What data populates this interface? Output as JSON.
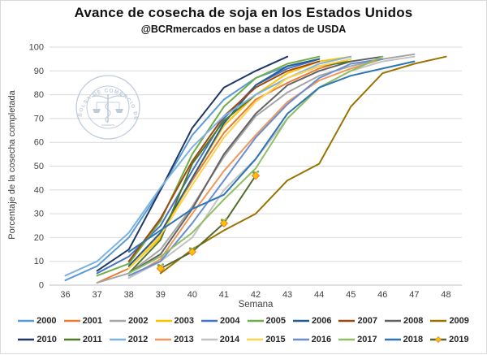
{
  "chart_data": {
    "type": "line",
    "title": "Avance de cosecha de soja en los Estados Unidos",
    "subtitle": "@BCRmercados en base a datos de USDA",
    "xlabel": "Semana",
    "ylabel": "Porcentaje de la cosecha completada",
    "x": [
      36,
      37,
      38,
      39,
      40,
      41,
      42,
      43,
      44,
      45,
      46,
      47,
      48
    ],
    "ylim": [
      0,
      100
    ],
    "ytick_step": 10,
    "grid": true,
    "legend_position": "bottom",
    "legend_rows": 2,
    "marker_style": {
      "fill": "#FFC000",
      "stroke": "#ED7D31",
      "leaf": "#70AD47"
    },
    "series": [
      {
        "name": "2000",
        "color": "#5B9BD5",
        "marker": false,
        "points": [
          [
            36,
            2
          ],
          [
            37,
            8
          ],
          [
            38,
            20
          ],
          [
            39,
            40
          ],
          [
            40,
            63
          ],
          [
            41,
            78
          ],
          [
            42,
            87
          ],
          [
            43,
            92
          ],
          [
            44,
            95
          ]
        ]
      },
      {
        "name": "2001",
        "color": "#ED7D31",
        "marker": false,
        "points": [
          [
            37,
            1
          ],
          [
            38,
            7
          ],
          [
            39,
            22
          ],
          [
            40,
            44
          ],
          [
            41,
            64
          ],
          [
            42,
            78
          ],
          [
            43,
            85
          ],
          [
            44,
            91
          ],
          [
            45,
            95
          ]
        ]
      },
      {
        "name": "2002",
        "color": "#A5A5A5",
        "marker": false,
        "points": [
          [
            37,
            1
          ],
          [
            38,
            5
          ],
          [
            39,
            15
          ],
          [
            40,
            33
          ],
          [
            41,
            54
          ],
          [
            42,
            71
          ],
          [
            43,
            81
          ],
          [
            44,
            88
          ],
          [
            45,
            92
          ],
          [
            46,
            95
          ],
          [
            47,
            97
          ]
        ]
      },
      {
        "name": "2003",
        "color": "#FFC000",
        "marker": false,
        "points": [
          [
            38,
            7
          ],
          [
            39,
            20
          ],
          [
            40,
            45
          ],
          [
            41,
            67
          ],
          [
            42,
            80
          ],
          [
            43,
            89
          ],
          [
            44,
            94
          ],
          [
            45,
            96
          ]
        ]
      },
      {
        "name": "2004",
        "color": "#4472C4",
        "marker": false,
        "points": [
          [
            37,
            5
          ],
          [
            38,
            12
          ],
          [
            39,
            25
          ],
          [
            40,
            48
          ],
          [
            41,
            70
          ],
          [
            42,
            84
          ],
          [
            43,
            91
          ],
          [
            44,
            95
          ]
        ]
      },
      {
        "name": "2005",
        "color": "#70AD47",
        "marker": false,
        "points": [
          [
            37,
            4
          ],
          [
            38,
            9
          ],
          [
            39,
            27
          ],
          [
            40,
            55
          ],
          [
            41,
            75
          ],
          [
            42,
            87
          ],
          [
            43,
            93
          ],
          [
            44,
            96
          ]
        ]
      },
      {
        "name": "2006",
        "color": "#255E91",
        "marker": false,
        "points": [
          [
            38,
            8
          ],
          [
            39,
            22
          ],
          [
            40,
            45
          ],
          [
            41,
            68
          ],
          [
            42,
            84
          ],
          [
            43,
            92
          ],
          [
            44,
            95
          ]
        ]
      },
      {
        "name": "2007",
        "color": "#9E480E",
        "marker": false,
        "points": [
          [
            38,
            10
          ],
          [
            39,
            28
          ],
          [
            40,
            52
          ],
          [
            41,
            71
          ],
          [
            42,
            83
          ],
          [
            43,
            90
          ],
          [
            44,
            94
          ]
        ]
      },
      {
        "name": "2008",
        "color": "#636363",
        "marker": false,
        "points": [
          [
            38,
            5
          ],
          [
            39,
            13
          ],
          [
            40,
            32
          ],
          [
            41,
            55
          ],
          [
            42,
            72
          ],
          [
            43,
            84
          ],
          [
            44,
            90
          ],
          [
            45,
            94
          ],
          [
            46,
            96
          ]
        ]
      },
      {
        "name": "2009",
        "color": "#997300",
        "marker": false,
        "points": [
          [
            39,
            5
          ],
          [
            40,
            15
          ],
          [
            41,
            23
          ],
          [
            42,
            30
          ],
          [
            43,
            44
          ],
          [
            44,
            51
          ],
          [
            45,
            75
          ],
          [
            46,
            89
          ],
          [
            47,
            93
          ],
          [
            48,
            96
          ]
        ]
      },
      {
        "name": "2010",
        "color": "#203864",
        "marker": false,
        "points": [
          [
            37,
            6
          ],
          [
            38,
            15
          ],
          [
            39,
            40
          ],
          [
            40,
            66
          ],
          [
            41,
            83
          ],
          [
            42,
            90
          ],
          [
            43,
            96
          ]
        ]
      },
      {
        "name": "2011",
        "color": "#4F7A28",
        "marker": false,
        "points": [
          [
            38,
            5
          ],
          [
            39,
            19
          ],
          [
            40,
            51
          ],
          [
            41,
            69
          ],
          [
            42,
            80
          ],
          [
            43,
            87
          ],
          [
            44,
            92
          ],
          [
            45,
            94
          ]
        ]
      },
      {
        "name": "2012",
        "color": "#7EB3E0",
        "marker": false,
        "points": [
          [
            36,
            4
          ],
          [
            37,
            10
          ],
          [
            38,
            22
          ],
          [
            39,
            41
          ],
          [
            40,
            58
          ],
          [
            41,
            71
          ],
          [
            42,
            80
          ],
          [
            43,
            87
          ],
          [
            44,
            93
          ],
          [
            45,
            96
          ]
        ]
      },
      {
        "name": "2013",
        "color": "#F1975A",
        "marker": false,
        "points": [
          [
            38,
            3
          ],
          [
            39,
            11
          ],
          [
            40,
            30
          ],
          [
            41,
            48
          ],
          [
            42,
            63
          ],
          [
            43,
            77
          ],
          [
            44,
            86
          ],
          [
            45,
            91
          ],
          [
            46,
            95
          ]
        ]
      },
      {
        "name": "2014",
        "color": "#C3C3C3",
        "marker": false,
        "points": [
          [
            38,
            3
          ],
          [
            39,
            10
          ],
          [
            40,
            20
          ],
          [
            41,
            40
          ],
          [
            42,
            53
          ],
          [
            43,
            70
          ],
          [
            44,
            83
          ],
          [
            45,
            90
          ],
          [
            46,
            94
          ],
          [
            47,
            96
          ]
        ]
      },
      {
        "name": "2015",
        "color": "#FFD34D",
        "marker": false,
        "points": [
          [
            38,
            7
          ],
          [
            39,
            21
          ],
          [
            40,
            42
          ],
          [
            41,
            62
          ],
          [
            42,
            77
          ],
          [
            43,
            87
          ],
          [
            44,
            92
          ],
          [
            45,
            95
          ]
        ]
      },
      {
        "name": "2016",
        "color": "#698ED0",
        "marker": false,
        "points": [
          [
            38,
            4
          ],
          [
            39,
            10
          ],
          [
            40,
            26
          ],
          [
            41,
            44
          ],
          [
            42,
            62
          ],
          [
            43,
            76
          ],
          [
            44,
            87
          ],
          [
            45,
            93
          ],
          [
            46,
            95
          ]
        ]
      },
      {
        "name": "2017",
        "color": "#8FBF63",
        "marker": false,
        "points": [
          [
            38,
            5
          ],
          [
            39,
            12
          ],
          [
            40,
            22
          ],
          [
            41,
            36
          ],
          [
            42,
            49
          ],
          [
            43,
            70
          ],
          [
            44,
            83
          ],
          [
            45,
            90
          ],
          [
            46,
            96
          ]
        ]
      },
      {
        "name": "2018",
        "color": "#2E75B6",
        "marker": false,
        "points": [
          [
            38,
            14
          ],
          [
            39,
            23
          ],
          [
            40,
            32
          ],
          [
            41,
            38
          ],
          [
            42,
            53
          ],
          [
            43,
            72
          ],
          [
            44,
            83
          ],
          [
            45,
            88
          ],
          [
            46,
            91
          ],
          [
            47,
            94
          ]
        ]
      },
      {
        "name": "2019",
        "color": "#556B2F",
        "marker": true,
        "points": [
          [
            39,
            7
          ],
          [
            40,
            14
          ],
          [
            41,
            26
          ],
          [
            42,
            46
          ]
        ]
      }
    ]
  },
  "watermark": {
    "ring_text": "BOLSA DE COMERCIO DE ROSARIO",
    "color": "#B6C2D4"
  }
}
